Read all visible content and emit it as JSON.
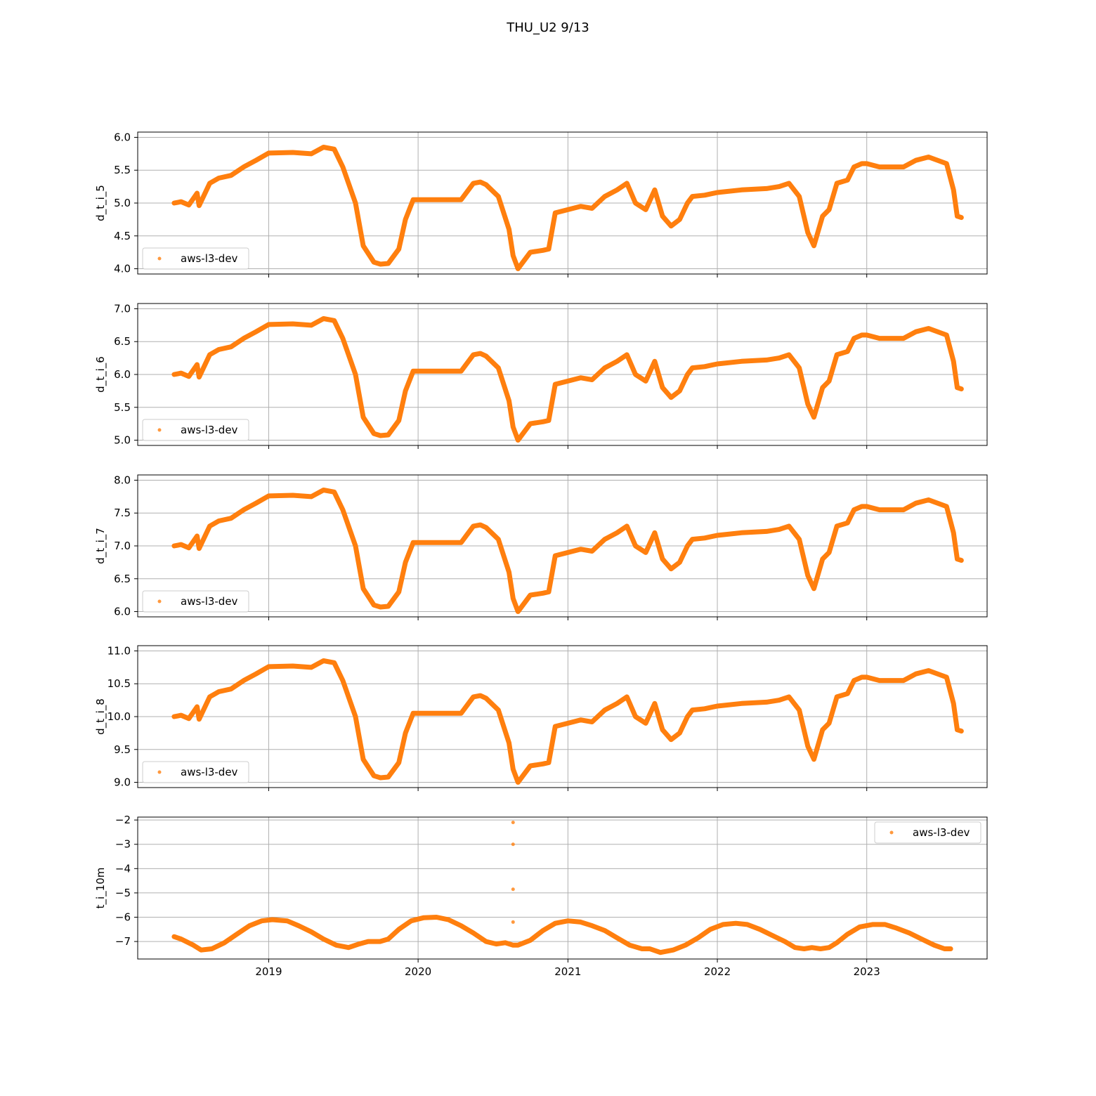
{
  "figure_title": "THU_U2 9/13",
  "x_ticks": [
    {
      "date": "2019-01-01",
      "label": "2019"
    },
    {
      "date": "2020-01-01",
      "label": "2020"
    },
    {
      "date": "2021-01-01",
      "label": "2021"
    },
    {
      "date": "2022-01-01",
      "label": "2022"
    },
    {
      "date": "2023-01-01",
      "label": "2023"
    }
  ],
  "x_range": [
    "2018-02-15",
    "2023-10-22"
  ],
  "colors": {
    "series": "#ff7f0e",
    "grid": "#b0b0b0",
    "axis": "#000000"
  },
  "chart_data": [
    {
      "type": "scatter",
      "xlabel": "",
      "ylabel": "d_t_i_5",
      "ylim": [
        3.92,
        6.08
      ],
      "yticks": [
        4.0,
        4.5,
        5.0,
        5.5,
        6.0
      ],
      "grid": true,
      "legend": "lower-left",
      "series": [
        {
          "name": "aws-l3-dev",
          "x": [
            "2018-05-15",
            "2018-06-01",
            "2018-06-20",
            "2018-07-10",
            "2018-07-15",
            "2018-08-10",
            "2018-09-01",
            "2018-10-01",
            "2018-11-01",
            "2018-12-01",
            "2019-01-01",
            "2019-03-01",
            "2019-04-15",
            "2019-05-15",
            "2019-06-10",
            "2019-07-01",
            "2019-08-01",
            "2019-08-20",
            "2019-09-15",
            "2019-10-01",
            "2019-10-20",
            "2019-11-15",
            "2019-12-01",
            "2019-12-20",
            "2020-02-01",
            "2020-03-15",
            "2020-04-15",
            "2020-05-15",
            "2020-06-01",
            "2020-06-15",
            "2020-07-15",
            "2020-08-10",
            "2020-08-20",
            "2020-09-01",
            "2020-10-01",
            "2020-11-01",
            "2020-11-15",
            "2020-12-01",
            "2021-01-01",
            "2021-02-01",
            "2021-03-01",
            "2021-04-01",
            "2021-05-01",
            "2021-05-25",
            "2021-06-15",
            "2021-07-10",
            "2021-08-01",
            "2021-08-20",
            "2021-09-10",
            "2021-10-01",
            "2021-10-20",
            "2021-11-01",
            "2021-12-01",
            "2022-01-01",
            "2022-03-01",
            "2022-05-01",
            "2022-06-01",
            "2022-06-25",
            "2022-07-20",
            "2022-08-10",
            "2022-08-25",
            "2022-09-15",
            "2022-10-01",
            "2022-10-20",
            "2022-11-15",
            "2022-12-01",
            "2022-12-20",
            "2023-01-01",
            "2023-02-01",
            "2023-04-01",
            "2023-05-01",
            "2023-06-01",
            "2023-07-15",
            "2023-08-01",
            "2023-08-10",
            "2023-08-20"
          ],
          "y": [
            5.0,
            5.02,
            4.97,
            5.15,
            4.96,
            5.3,
            5.38,
            5.42,
            5.55,
            5.65,
            5.76,
            5.77,
            5.75,
            5.85,
            5.82,
            5.55,
            5.0,
            4.35,
            4.1,
            4.07,
            4.08,
            4.3,
            4.75,
            5.05,
            5.05,
            5.05,
            5.05,
            5.3,
            5.32,
            5.28,
            5.1,
            4.6,
            4.2,
            4.0,
            4.25,
            4.28,
            4.3,
            4.85,
            4.9,
            4.95,
            4.92,
            5.1,
            5.2,
            5.3,
            5.0,
            4.9,
            5.2,
            4.8,
            4.65,
            4.75,
            5.0,
            5.1,
            5.12,
            5.16,
            5.2,
            5.22,
            5.25,
            5.3,
            5.1,
            4.55,
            4.35,
            4.8,
            4.9,
            5.3,
            5.35,
            5.55,
            5.6,
            5.6,
            5.55,
            5.55,
            5.65,
            5.7,
            5.6,
            5.2,
            4.8,
            4.78
          ]
        }
      ]
    },
    {
      "type": "scatter",
      "xlabel": "",
      "ylabel": "d_t_i_6",
      "ylim": [
        4.92,
        7.08
      ],
      "yticks": [
        5.0,
        5.5,
        6.0,
        6.5,
        7.0
      ],
      "grid": true,
      "legend": "lower-left",
      "series": [
        {
          "name": "aws-l3-dev",
          "x": [
            "2018-05-15",
            "2018-06-01",
            "2018-06-20",
            "2018-07-10",
            "2018-07-15",
            "2018-08-10",
            "2018-09-01",
            "2018-10-01",
            "2018-11-01",
            "2018-12-01",
            "2019-01-01",
            "2019-03-01",
            "2019-04-15",
            "2019-05-15",
            "2019-06-10",
            "2019-07-01",
            "2019-08-01",
            "2019-08-20",
            "2019-09-15",
            "2019-10-01",
            "2019-10-20",
            "2019-11-15",
            "2019-12-01",
            "2019-12-20",
            "2020-02-01",
            "2020-03-15",
            "2020-04-15",
            "2020-05-15",
            "2020-06-01",
            "2020-06-15",
            "2020-07-15",
            "2020-08-10",
            "2020-08-20",
            "2020-09-01",
            "2020-10-01",
            "2020-11-01",
            "2020-11-15",
            "2020-12-01",
            "2021-01-01",
            "2021-02-01",
            "2021-03-01",
            "2021-04-01",
            "2021-05-01",
            "2021-05-25",
            "2021-06-15",
            "2021-07-10",
            "2021-08-01",
            "2021-08-20",
            "2021-09-10",
            "2021-10-01",
            "2021-10-20",
            "2021-11-01",
            "2021-12-01",
            "2022-01-01",
            "2022-03-01",
            "2022-05-01",
            "2022-06-01",
            "2022-06-25",
            "2022-07-20",
            "2022-08-10",
            "2022-08-25",
            "2022-09-15",
            "2022-10-01",
            "2022-10-20",
            "2022-11-15",
            "2022-12-01",
            "2022-12-20",
            "2023-01-01",
            "2023-02-01",
            "2023-04-01",
            "2023-05-01",
            "2023-06-01",
            "2023-07-15",
            "2023-08-01",
            "2023-08-10",
            "2023-08-20"
          ],
          "y": [
            6.0,
            6.02,
            5.97,
            6.15,
            5.96,
            6.3,
            6.38,
            6.42,
            6.55,
            6.65,
            6.76,
            6.77,
            6.75,
            6.85,
            6.82,
            6.55,
            6.0,
            5.35,
            5.1,
            5.07,
            5.08,
            5.3,
            5.75,
            6.05,
            6.05,
            6.05,
            6.05,
            6.3,
            6.32,
            6.28,
            6.1,
            5.6,
            5.2,
            5.0,
            5.25,
            5.28,
            5.3,
            5.85,
            5.9,
            5.95,
            5.92,
            6.1,
            6.2,
            6.3,
            6.0,
            5.9,
            6.2,
            5.8,
            5.65,
            5.75,
            6.0,
            6.1,
            6.12,
            6.16,
            6.2,
            6.22,
            6.25,
            6.3,
            6.1,
            5.55,
            5.35,
            5.8,
            5.9,
            6.3,
            6.35,
            6.55,
            6.6,
            6.6,
            6.55,
            6.55,
            6.65,
            6.7,
            6.6,
            6.2,
            5.8,
            5.78
          ]
        }
      ]
    },
    {
      "type": "scatter",
      "xlabel": "",
      "ylabel": "d_t_i_7",
      "ylim": [
        5.92,
        8.08
      ],
      "yticks": [
        6.0,
        6.5,
        7.0,
        7.5,
        8.0
      ],
      "grid": true,
      "legend": "lower-left",
      "series": [
        {
          "name": "aws-l3-dev",
          "x": [
            "2018-05-15",
            "2018-06-01",
            "2018-06-20",
            "2018-07-10",
            "2018-07-15",
            "2018-08-10",
            "2018-09-01",
            "2018-10-01",
            "2018-11-01",
            "2018-12-01",
            "2019-01-01",
            "2019-03-01",
            "2019-04-15",
            "2019-05-15",
            "2019-06-10",
            "2019-07-01",
            "2019-08-01",
            "2019-08-20",
            "2019-09-15",
            "2019-10-01",
            "2019-10-20",
            "2019-11-15",
            "2019-12-01",
            "2019-12-20",
            "2020-02-01",
            "2020-03-15",
            "2020-04-15",
            "2020-05-15",
            "2020-06-01",
            "2020-06-15",
            "2020-07-15",
            "2020-08-10",
            "2020-08-20",
            "2020-09-01",
            "2020-10-01",
            "2020-11-01",
            "2020-11-15",
            "2020-12-01",
            "2021-01-01",
            "2021-02-01",
            "2021-03-01",
            "2021-04-01",
            "2021-05-01",
            "2021-05-25",
            "2021-06-15",
            "2021-07-10",
            "2021-08-01",
            "2021-08-20",
            "2021-09-10",
            "2021-10-01",
            "2021-10-20",
            "2021-11-01",
            "2021-12-01",
            "2022-01-01",
            "2022-03-01",
            "2022-05-01",
            "2022-06-01",
            "2022-06-25",
            "2022-07-20",
            "2022-08-10",
            "2022-08-25",
            "2022-09-15",
            "2022-10-01",
            "2022-10-20",
            "2022-11-15",
            "2022-12-01",
            "2022-12-20",
            "2023-01-01",
            "2023-02-01",
            "2023-04-01",
            "2023-05-01",
            "2023-06-01",
            "2023-07-15",
            "2023-08-01",
            "2023-08-10",
            "2023-08-20"
          ],
          "y": [
            7.0,
            7.02,
            6.97,
            7.15,
            6.96,
            7.3,
            7.38,
            7.42,
            7.55,
            7.65,
            7.76,
            7.77,
            7.75,
            7.85,
            7.82,
            7.55,
            7.0,
            6.35,
            6.1,
            6.07,
            6.08,
            6.3,
            6.75,
            7.05,
            7.05,
            7.05,
            7.05,
            7.3,
            7.32,
            7.28,
            7.1,
            6.6,
            6.2,
            6.0,
            6.25,
            6.28,
            6.3,
            6.85,
            6.9,
            6.95,
            6.92,
            7.1,
            7.2,
            7.3,
            7.0,
            6.9,
            7.2,
            6.8,
            6.65,
            6.75,
            7.0,
            7.1,
            7.12,
            7.16,
            7.2,
            7.22,
            7.25,
            7.3,
            7.1,
            6.55,
            6.35,
            6.8,
            6.9,
            7.3,
            7.35,
            7.55,
            7.6,
            7.6,
            7.55,
            7.55,
            7.65,
            7.7,
            7.6,
            7.2,
            6.8,
            6.78
          ]
        }
      ]
    },
    {
      "type": "scatter",
      "xlabel": "",
      "ylabel": "d_t_i_8",
      "ylim": [
        8.92,
        11.08
      ],
      "yticks": [
        9.0,
        9.5,
        10.0,
        10.5,
        11.0
      ],
      "grid": true,
      "legend": "lower-left",
      "series": [
        {
          "name": "aws-l3-dev",
          "x": [
            "2018-05-15",
            "2018-06-01",
            "2018-06-20",
            "2018-07-10",
            "2018-07-15",
            "2018-08-10",
            "2018-09-01",
            "2018-10-01",
            "2018-11-01",
            "2018-12-01",
            "2019-01-01",
            "2019-03-01",
            "2019-04-15",
            "2019-05-15",
            "2019-06-10",
            "2019-07-01",
            "2019-08-01",
            "2019-08-20",
            "2019-09-15",
            "2019-10-01",
            "2019-10-20",
            "2019-11-15",
            "2019-12-01",
            "2019-12-20",
            "2020-02-01",
            "2020-03-15",
            "2020-04-15",
            "2020-05-15",
            "2020-06-01",
            "2020-06-15",
            "2020-07-15",
            "2020-08-10",
            "2020-08-20",
            "2020-09-01",
            "2020-10-01",
            "2020-11-01",
            "2020-11-15",
            "2020-12-01",
            "2021-01-01",
            "2021-02-01",
            "2021-03-01",
            "2021-04-01",
            "2021-05-01",
            "2021-05-25",
            "2021-06-15",
            "2021-07-10",
            "2021-08-01",
            "2021-08-20",
            "2021-09-10",
            "2021-10-01",
            "2021-10-20",
            "2021-11-01",
            "2021-12-01",
            "2022-01-01",
            "2022-03-01",
            "2022-05-01",
            "2022-06-01",
            "2022-06-25",
            "2022-07-20",
            "2022-08-10",
            "2022-08-25",
            "2022-09-15",
            "2022-10-01",
            "2022-10-20",
            "2022-11-15",
            "2022-12-01",
            "2022-12-20",
            "2023-01-01",
            "2023-02-01",
            "2023-04-01",
            "2023-05-01",
            "2023-06-01",
            "2023-07-15",
            "2023-08-01",
            "2023-08-10",
            "2023-08-20"
          ],
          "y": [
            10.0,
            10.02,
            9.97,
            10.15,
            9.96,
            10.3,
            10.38,
            10.42,
            10.55,
            10.65,
            10.76,
            10.77,
            10.75,
            10.85,
            10.82,
            10.55,
            10.0,
            9.35,
            9.1,
            9.07,
            9.08,
            9.3,
            9.75,
            10.05,
            10.05,
            10.05,
            10.05,
            10.3,
            10.32,
            10.28,
            10.1,
            9.6,
            9.2,
            9.0,
            9.25,
            9.28,
            9.3,
            9.85,
            9.9,
            9.95,
            9.92,
            10.1,
            10.2,
            10.3,
            10.0,
            9.9,
            10.2,
            9.8,
            9.65,
            9.75,
            10.0,
            10.1,
            10.12,
            10.16,
            10.2,
            10.22,
            10.25,
            10.3,
            10.1,
            9.55,
            9.35,
            9.8,
            9.9,
            10.3,
            10.35,
            10.55,
            10.6,
            10.6,
            10.55,
            10.55,
            10.65,
            10.7,
            10.6,
            10.2,
            9.8,
            9.78
          ]
        }
      ]
    },
    {
      "type": "scatter",
      "xlabel": "",
      "ylabel": "t_i_10m",
      "ylim": [
        -7.72,
        -1.88
      ],
      "yticks": [
        -7,
        -6,
        -5,
        -4,
        -3,
        -2
      ],
      "ytick_labels": [
        "−7",
        "−6",
        "−5",
        "−4",
        "−3",
        "−2"
      ],
      "grid": true,
      "legend": "upper-right",
      "series": [
        {
          "name": "aws-l3-dev",
          "x": [
            "2018-05-15",
            "2018-06-01",
            "2018-07-01",
            "2018-07-20",
            "2018-08-15",
            "2018-09-15",
            "2018-10-15",
            "2018-11-15",
            "2018-12-15",
            "2019-01-10",
            "2019-02-15",
            "2019-03-15",
            "2019-04-15",
            "2019-05-15",
            "2019-06-15",
            "2019-07-15",
            "2019-08-10",
            "2019-09-01",
            "2019-09-30",
            "2019-10-20",
            "2019-11-15",
            "2019-12-15",
            "2020-01-15",
            "2020-02-15",
            "2020-03-15",
            "2020-04-15",
            "2020-05-15",
            "2020-06-15",
            "2020-07-10",
            "2020-08-01",
            "2020-08-20",
            "2020-09-01",
            "2020-10-01",
            "2020-11-01",
            "2020-12-01",
            "2021-01-01",
            "2021-02-01",
            "2021-03-01",
            "2021-04-01",
            "2021-05-01",
            "2021-06-01",
            "2021-07-01",
            "2021-07-20",
            "2021-08-15",
            "2021-09-15",
            "2021-10-15",
            "2021-11-15",
            "2021-12-15",
            "2022-01-15",
            "2022-02-15",
            "2022-03-15",
            "2022-04-15",
            "2022-05-15",
            "2022-06-15",
            "2022-07-10",
            "2022-08-01",
            "2022-08-20",
            "2022-09-10",
            "2022-10-01",
            "2022-10-20",
            "2022-11-15",
            "2022-12-15",
            "2023-01-15",
            "2023-02-15",
            "2023-03-15",
            "2023-04-15",
            "2023-05-15",
            "2023-06-15",
            "2023-07-10",
            "2023-07-25"
          ],
          "y": [
            -6.8,
            -6.9,
            -7.15,
            -7.35,
            -7.3,
            -7.05,
            -6.7,
            -6.35,
            -6.15,
            -6.1,
            -6.15,
            -6.35,
            -6.6,
            -6.9,
            -7.15,
            -7.25,
            -7.1,
            -7.0,
            -7.0,
            -6.9,
            -6.5,
            -6.15,
            -6.02,
            -6.0,
            -6.1,
            -6.35,
            -6.65,
            -7.0,
            -7.1,
            -7.05,
            -7.15,
            -7.15,
            -6.95,
            -6.55,
            -6.25,
            -6.15,
            -6.2,
            -6.35,
            -6.55,
            -6.85,
            -7.15,
            -7.3,
            -7.3,
            -7.45,
            -7.35,
            -7.15,
            -6.85,
            -6.5,
            -6.3,
            -6.25,
            -6.3,
            -6.5,
            -6.75,
            -7.0,
            -7.25,
            -7.3,
            -7.25,
            -7.3,
            -7.25,
            -7.05,
            -6.7,
            -6.4,
            -6.3,
            -6.3,
            -6.45,
            -6.65,
            -6.9,
            -7.15,
            -7.3,
            -7.3
          ],
          "outliers_x": [
            "2020-08-20",
            "2020-08-20",
            "2020-08-20",
            "2020-08-20"
          ],
          "outliers_y": [
            -2.1,
            -3.0,
            -4.85,
            -6.2
          ]
        }
      ]
    }
  ]
}
